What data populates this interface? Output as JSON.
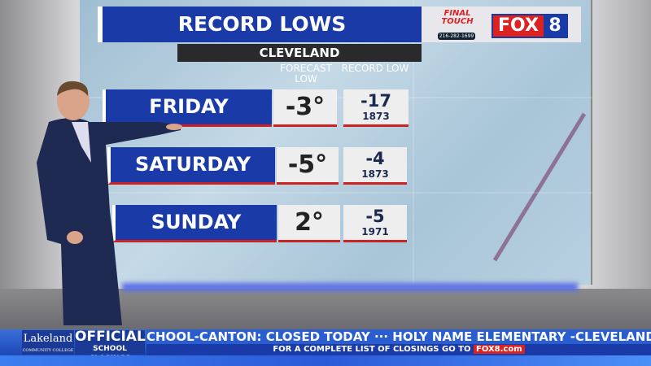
{
  "graphic": {
    "title": "RECORD LOWS",
    "city": "CLEVELAND",
    "col_forecast": "FORECAST LOW",
    "col_record": "RECORD LOW",
    "rows": [
      {
        "day": "FRIDAY",
        "forecast": "-3°",
        "record": "-17",
        "record_year": "1873"
      },
      {
        "day": "SATURDAY",
        "forecast": "-5°",
        "record": "-4",
        "record_year": "1873"
      },
      {
        "day": "SUNDAY",
        "forecast": "2°",
        "record": "-5",
        "record_year": "1971"
      }
    ]
  },
  "sponsor": {
    "name": "FINAL TOUCH",
    "phone": "216-282-1699"
  },
  "station": {
    "logo": "FOX 8",
    "accent": "#1a3aa8",
    "red": "#d22222"
  },
  "ticker": {
    "sponsor": "Lakeland",
    "sponsor_sub": "COMMUNITY COLLEGE",
    "label_top": "OFFICIAL",
    "label_bottom": "SCHOOL CLOSINGS",
    "scroll_text": "CHOOL-CANTON: CLOSED TODAY  ···  HOLY NAME ELEMENTARY -CLEVELAND: CL",
    "subline": "FOR A COMPLETE LIST OF CLOSINGS GO TO",
    "site": "FOX8.com"
  }
}
